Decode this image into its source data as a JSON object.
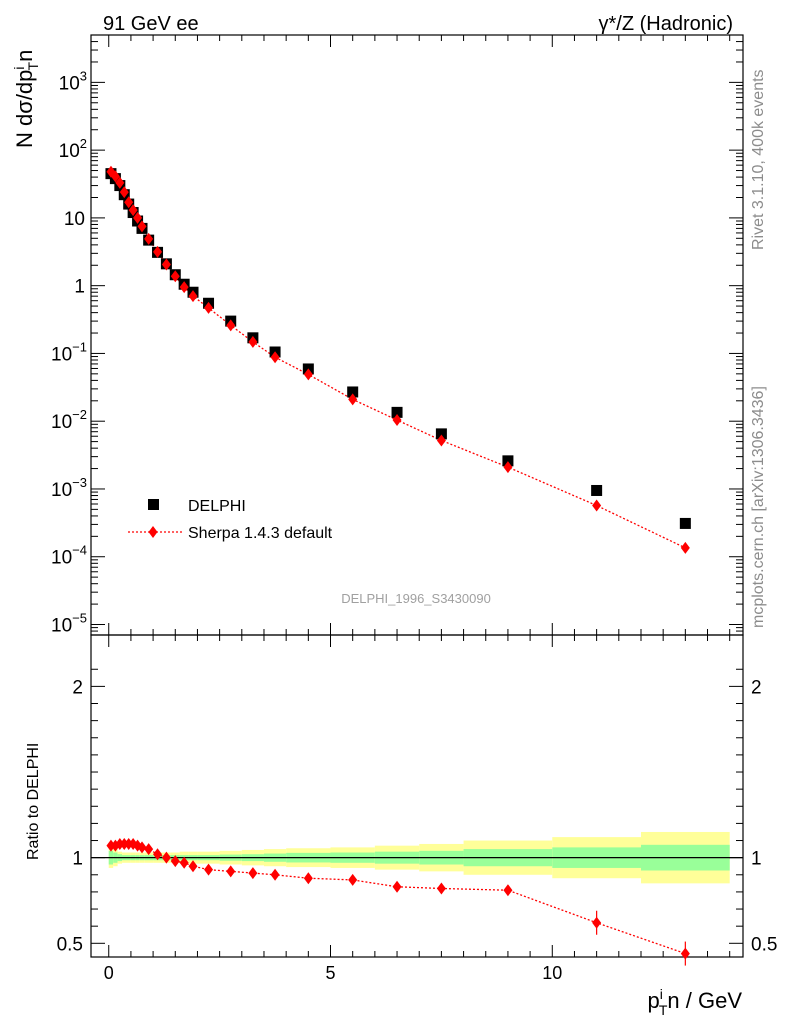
{
  "header": {
    "left_title": "91 GeV ee",
    "right_title": "γ*/Z (Hadronic)"
  },
  "side_labels": {
    "rivet": "Rivet 3.1.10,  400k events",
    "mcplots": "mcplots.cern.ch [arXiv:1306.3436]"
  },
  "watermark": "DELPHI_1996_S3430090",
  "chart_data": [
    {
      "type": "scatter",
      "panel": "main",
      "yscale": "log",
      "ylabel": "N dσ/dp",
      "ylabel_sup": "i",
      "ylabel_sub": "T",
      "ylabel_tail": "n",
      "xlim": [
        -0.4,
        14.3
      ],
      "ylim": [
        7e-06,
        5000
      ],
      "y_ticks": [
        {
          "v": 1e-05,
          "base": "10",
          "exp": "−5"
        },
        {
          "v": 0.0001,
          "base": "10",
          "exp": "−4"
        },
        {
          "v": 0.001,
          "base": "10",
          "exp": "−3"
        },
        {
          "v": 0.01,
          "base": "10",
          "exp": "−2"
        },
        {
          "v": 0.1,
          "base": "10",
          "exp": "−1"
        },
        {
          "v": 1,
          "base": "1",
          "exp": ""
        },
        {
          "v": 10,
          "base": "10",
          "exp": ""
        },
        {
          "v": 100,
          "base": "10",
          "exp": "2"
        },
        {
          "v": 1000,
          "base": "10",
          "exp": "3"
        }
      ],
      "legend": [
        {
          "label": "DELPHI",
          "marker": "square",
          "color": "#000000"
        },
        {
          "label": "Sherpa 1.4.3 default",
          "marker": "diamond",
          "color": "#ff0000"
        }
      ],
      "x": [
        0.05,
        0.15,
        0.25,
        0.35,
        0.45,
        0.55,
        0.65,
        0.75,
        0.9,
        1.1,
        1.3,
        1.5,
        1.7,
        1.9,
        2.25,
        2.75,
        3.25,
        3.75,
        4.5,
        5.5,
        6.5,
        7.5,
        9.0,
        11.0,
        13.0
      ],
      "series": [
        {
          "name": "DELPHI",
          "color": "#000000",
          "marker": "square",
          "values": [
            45,
            38,
            30,
            22,
            16,
            12,
            9,
            7,
            4.7,
            3.1,
            2.1,
            1.45,
            1.05,
            0.8,
            0.55,
            0.3,
            0.17,
            0.105,
            0.059,
            0.027,
            0.0135,
            0.0065,
            0.0026,
            0.00095,
            0.00031
          ]
        },
        {
          "name": "Sherpa 1.4.3 default",
          "color": "#ff0000",
          "marker": "diamond",
          "values": [
            48,
            41,
            33,
            24,
            17,
            13,
            10,
            7.5,
            4.9,
            3.15,
            2.05,
            1.38,
            0.95,
            0.7,
            0.47,
            0.26,
            0.148,
            0.088,
            0.049,
            0.021,
            0.0104,
            0.0052,
            0.0021,
            0.00057,
            0.000135
          ]
        }
      ]
    },
    {
      "type": "scatter",
      "panel": "ratio",
      "ylabel": "Ratio to DELPHI",
      "xlabel_main": "p",
      "xlabel_sup": "i",
      "xlabel_sub": "T",
      "xlabel_tail": "n / GeV",
      "xlim": [
        -0.4,
        14.3
      ],
      "ylim": [
        0.42,
        2.3
      ],
      "x_ticks": [
        0,
        5,
        10
      ],
      "y_ticks": [
        0.5,
        1,
        2
      ],
      "reference_line": 1,
      "band_edges": [
        0,
        0.1,
        0.2,
        0.3,
        0.4,
        0.5,
        0.6,
        0.7,
        0.8,
        1.0,
        1.2,
        1.4,
        1.6,
        1.8,
        2.0,
        2.5,
        3.0,
        3.5,
        4.0,
        5.0,
        6.0,
        7.0,
        8.0,
        10.0,
        12.0,
        14.0
      ],
      "band_green_halfwidth": [
        0.04,
        0.03,
        0.02,
        0.015,
        0.015,
        0.015,
        0.015,
        0.015,
        0.015,
        0.015,
        0.015,
        0.015,
        0.015,
        0.015,
        0.015,
        0.018,
        0.02,
        0.024,
        0.028,
        0.03,
        0.035,
        0.04,
        0.05,
        0.06,
        0.075
      ],
      "band_yellow_halfwidth": [
        0.06,
        0.05,
        0.035,
        0.03,
        0.03,
        0.03,
        0.03,
        0.03,
        0.03,
        0.03,
        0.03,
        0.03,
        0.035,
        0.035,
        0.035,
        0.04,
        0.045,
        0.05,
        0.055,
        0.06,
        0.07,
        0.08,
        0.1,
        0.12,
        0.15
      ],
      "x": [
        0.05,
        0.15,
        0.25,
        0.35,
        0.45,
        0.55,
        0.65,
        0.75,
        0.9,
        1.1,
        1.3,
        1.5,
        1.7,
        1.9,
        2.25,
        2.75,
        3.25,
        3.75,
        4.5,
        5.5,
        6.5,
        7.5,
        9.0,
        11.0,
        13.0
      ],
      "series": [
        {
          "name": "Sherpa 1.4.3 default",
          "color": "#ff0000",
          "marker": "diamond",
          "values": [
            1.07,
            1.07,
            1.08,
            1.08,
            1.08,
            1.08,
            1.07,
            1.06,
            1.05,
            1.02,
            1.0,
            0.98,
            0.97,
            0.95,
            0.93,
            0.92,
            0.91,
            0.9,
            0.88,
            0.87,
            0.83,
            0.82,
            0.81,
            0.62,
            0.44
          ]
        }
      ]
    }
  ]
}
